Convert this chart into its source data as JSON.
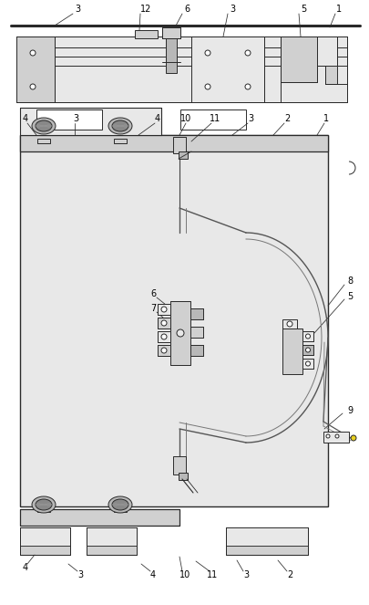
{
  "fig_width": 4.06,
  "fig_height": 6.63,
  "dpi": 100,
  "lc": "#2a2a2a",
  "gray1": "#e8e8e8",
  "gray2": "#d0d0d0",
  "gray3": "#b8b8b8",
  "gray4": "#c8c8c8",
  "white": "#ffffff",
  "bg": "#f4f4f4"
}
